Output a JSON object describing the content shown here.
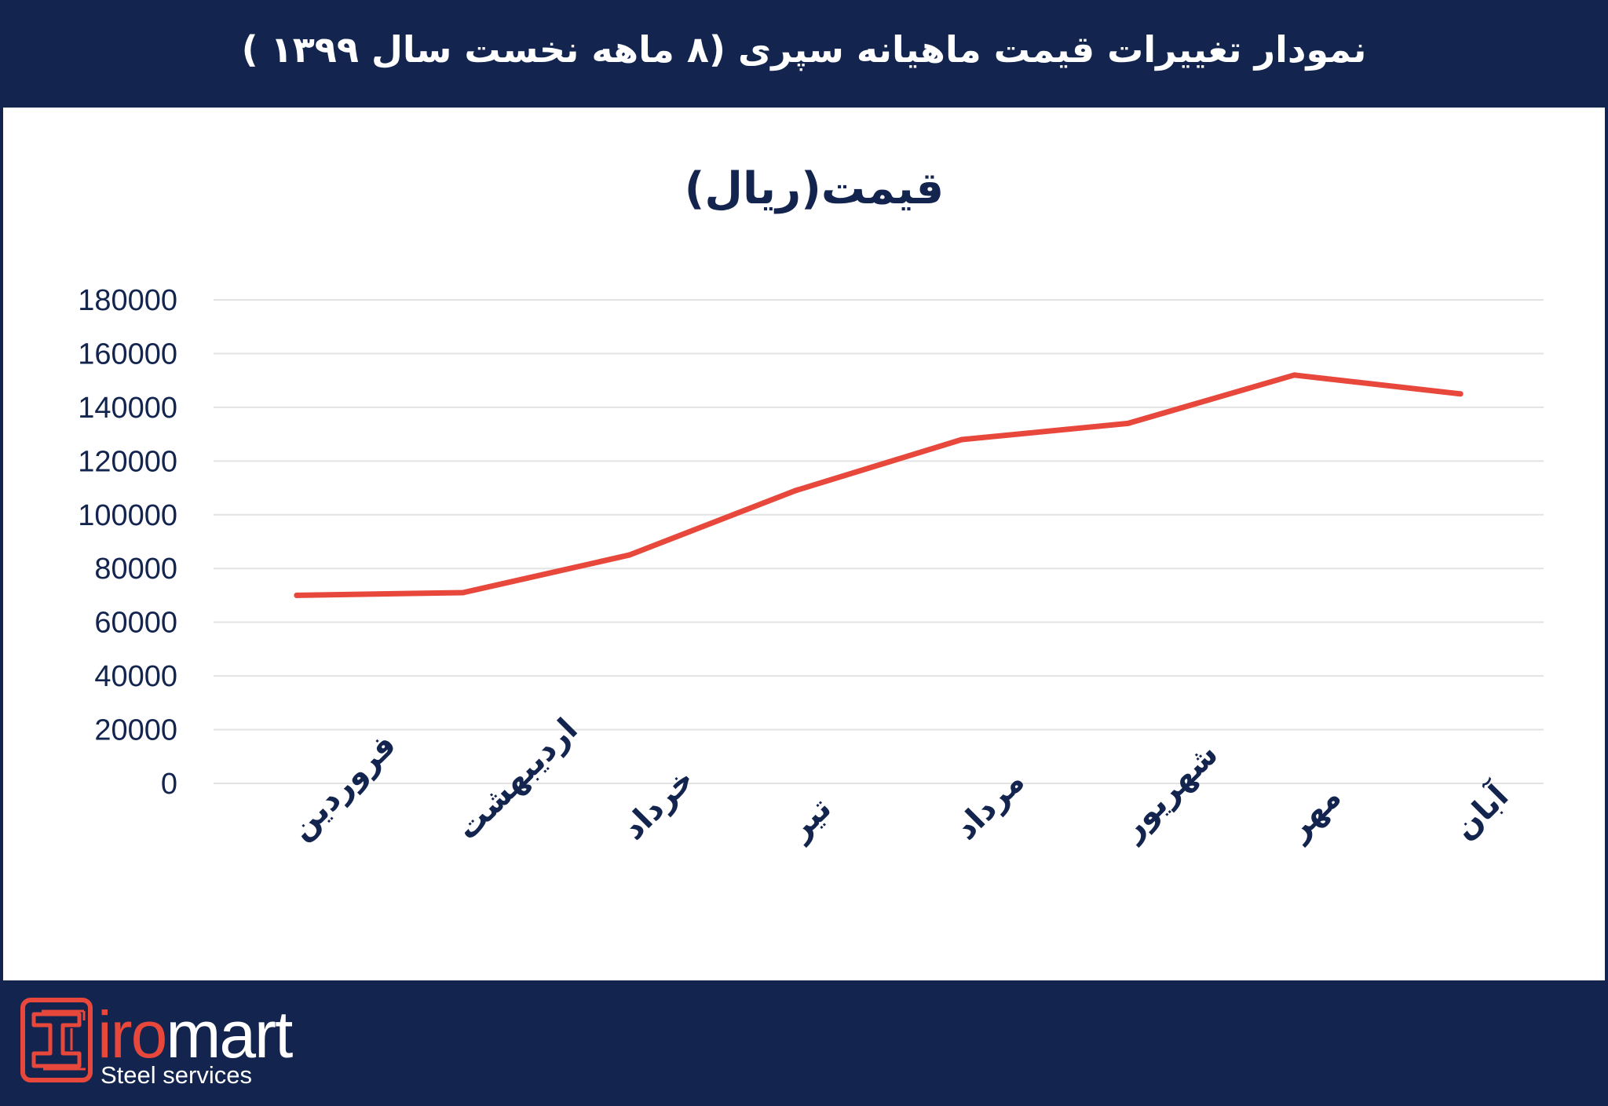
{
  "header": {
    "title": "نمودار تغییرات قیمت ماهیانه سپری (۸ ماهه نخست سال ۱۳۹۹ )"
  },
  "colors": {
    "background": "#13254e",
    "line": "#e8483c",
    "grid": "#e3e3e3",
    "text": "#13254e",
    "brand_red": "#e8483c"
  },
  "chart_data": {
    "type": "line",
    "title": "قیمت(ریال)",
    "categories": [
      "فروردین",
      "اردیبهشت",
      "خرداد",
      "تیر",
      "مرداد",
      "شهریور",
      "مهر",
      "آبان"
    ],
    "series": [
      {
        "values": [
          70000,
          71000,
          85000,
          109000,
          128000,
          134000,
          152000,
          145000
        ]
      }
    ],
    "ylim": [
      0,
      180000
    ],
    "yticks": [
      0,
      20000,
      40000,
      60000,
      80000,
      100000,
      120000,
      140000,
      160000,
      180000
    ],
    "ytick_labels": [
      "0",
      "20000",
      "40000",
      "60000",
      "80000",
      "100000",
      "120000",
      "140000",
      "160000",
      "180000"
    ],
    "grid": true,
    "legend": "none"
  },
  "footer": {
    "logo_lead": "iro",
    "logo_tail": "mart",
    "logo_sub": "Steel services",
    "logo_icon": "I-beam-icon"
  }
}
